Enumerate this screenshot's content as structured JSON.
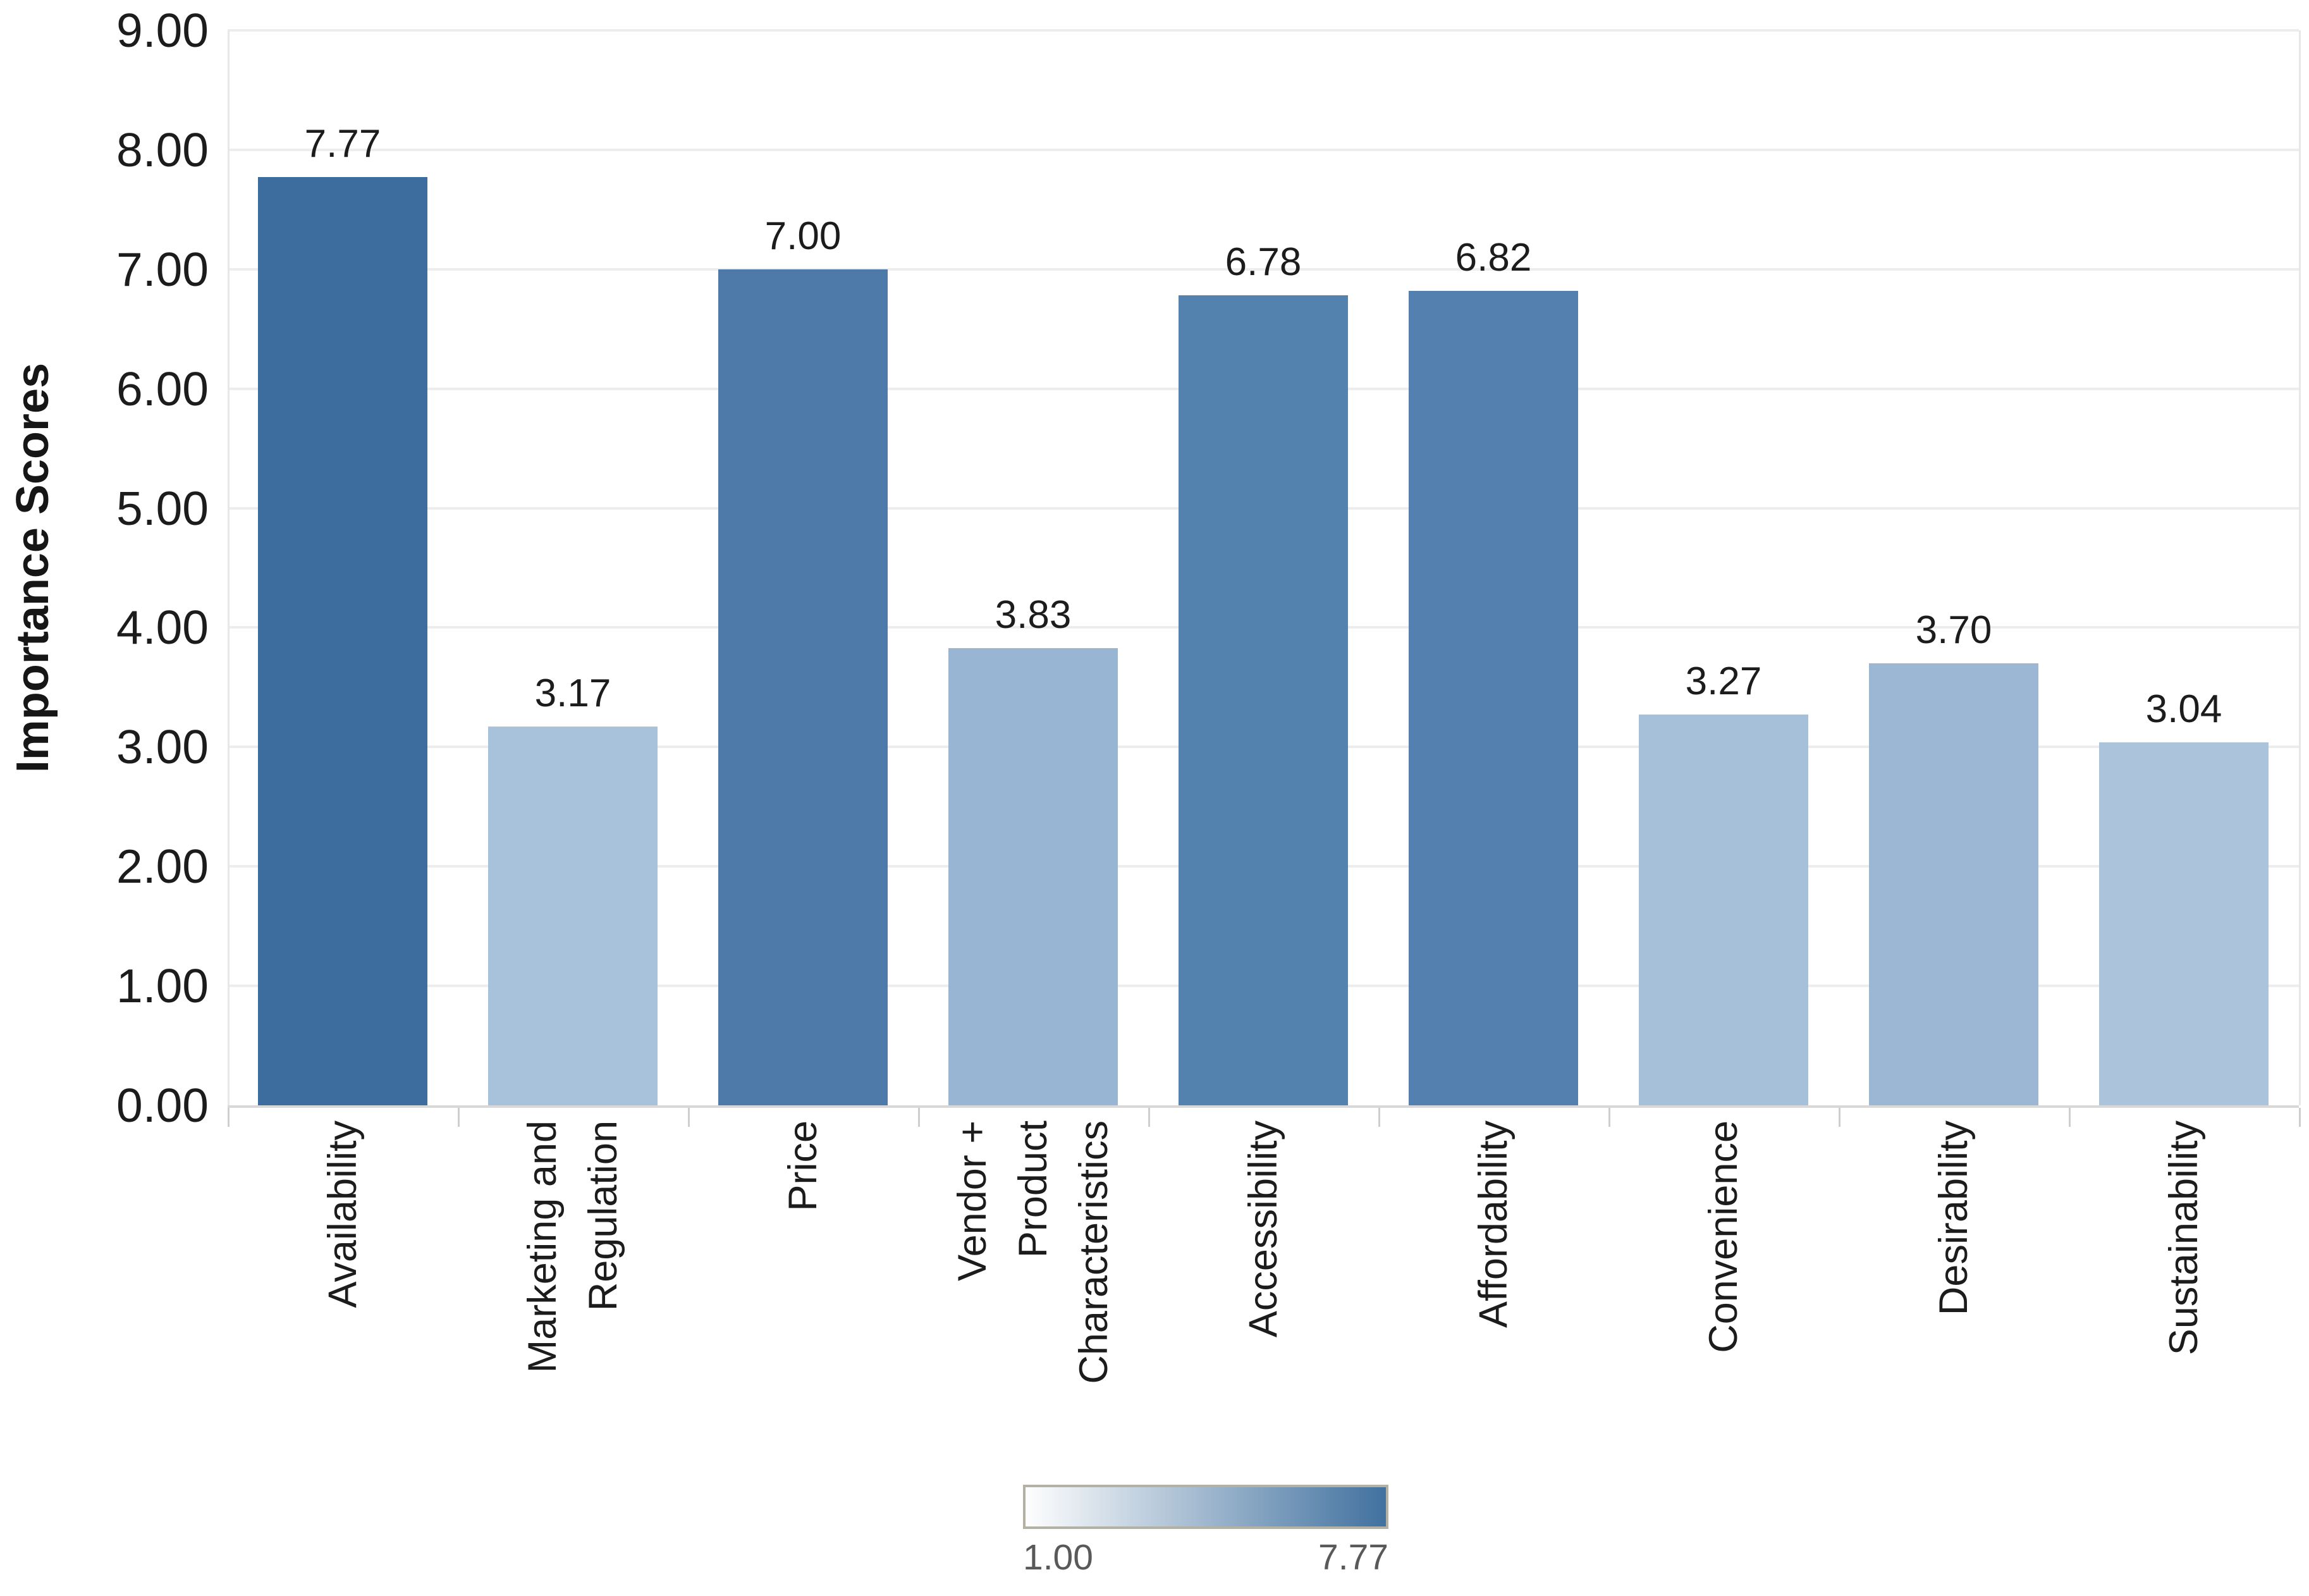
{
  "chart_data": {
    "type": "bar",
    "title": "",
    "xlabel": "",
    "ylabel": "Importance Scores",
    "ylim": [
      0,
      9
    ],
    "ytick_step": 1,
    "ytick_labels": [
      "0.00",
      "1.00",
      "2.00",
      "3.00",
      "4.00",
      "5.00",
      "6.00",
      "7.00",
      "8.00",
      "9.00"
    ],
    "grid": "horizontal",
    "categories": [
      "Availability",
      "Marketing and\nRegulation",
      "Price",
      "Vendor +\nProduct\nCharacteristics",
      "Accessibility",
      "Affordability",
      "Convenience",
      "Desirability",
      "Sustainability"
    ],
    "values": [
      7.77,
      3.17,
      7.0,
      3.83,
      6.78,
      6.82,
      3.27,
      3.7,
      3.04
    ],
    "value_labels": [
      "7.77",
      "3.17",
      "7.00",
      "3.83",
      "6.78",
      "6.82",
      "3.27",
      "3.70",
      "3.04"
    ],
    "bar_colors": [
      "#3d6d9e",
      "#a9c2db",
      "#4d7aa8",
      "#98b5d3",
      "#5482af",
      "#5380ae",
      "#a6c0d9",
      "#9bb7d4",
      "#abc4dc"
    ],
    "legend": {
      "type": "color-gradient",
      "min_label": "1.00",
      "max_label": "7.77",
      "gradient_start": "#fefefe",
      "gradient_end": "#41719f",
      "border_color": "#b3b0a4",
      "position": "bottom-center"
    }
  },
  "colors": {
    "background": "#ffffff",
    "gridline": "#ededed",
    "axis_line": "#d8d8d8",
    "text": "#1c1c1c",
    "legend_text": "#595959"
  }
}
